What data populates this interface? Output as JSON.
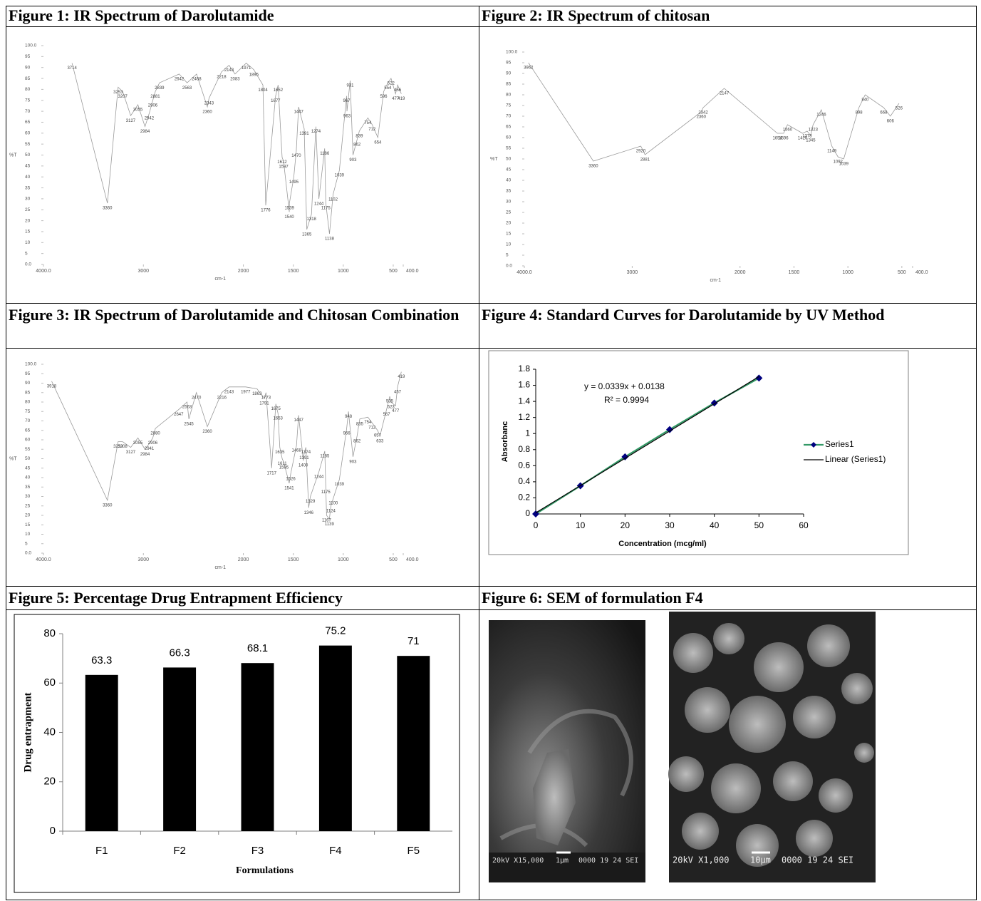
{
  "captions": [
    "Figure 1: IR Spectrum of Darolutamide",
    "Figure 2: IR Spectrum of chitosan",
    "Figure 3: IR Spectrum of Darolutamide and Chitosan Combination",
    "Figure 4: Standard Curves for Darolutamide by UV Method",
    "Figure 5: Percentage Drug Entrapment Efficiency",
    "Figure 6: SEM of formulation F4"
  ],
  "chart_data": [
    {
      "type": "line",
      "color": "#9a9a9a",
      "xlabel": "cm-1",
      "ylabel": "%T",
      "x": [
        3714,
        3360,
        3253,
        3207,
        3127,
        3055,
        2984,
        2942,
        2906,
        2881,
        2839,
        2642,
        2563,
        2468,
        2360,
        2343,
        2218,
        2143,
        2083,
        1971,
        1895,
        1804,
        1776,
        1677,
        1652,
        1612,
        1597,
        1540,
        1539,
        1495,
        1470,
        1447,
        1391,
        1365,
        1318,
        1274,
        1244,
        1186,
        1175,
        1138,
        1102,
        1039,
        967,
        963,
        931,
        903,
        862,
        839,
        754,
        712,
        654,
        596,
        554,
        522,
        477,
        456,
        419
      ],
      "values": [
        92,
        28,
        81,
        79,
        68,
        73,
        63,
        69,
        75,
        79,
        83,
        87,
        83,
        87,
        72,
        76,
        88,
        91,
        87,
        92,
        89,
        82,
        27,
        77,
        82,
        49,
        47,
        24,
        28,
        40,
        52,
        72,
        62,
        16,
        23,
        63,
        30,
        53,
        28,
        14,
        32,
        43,
        77,
        70,
        84,
        50,
        57,
        61,
        67,
        64,
        58,
        79,
        83,
        85,
        78,
        82,
        78
      ],
      "xlim": [
        4000,
        400
      ],
      "xticks": [
        {
          "value": 4000,
          "label": "4000.0"
        },
        3000,
        2000,
        1500,
        1000,
        500,
        {
          "value": 400,
          "label": "400.0"
        }
      ],
      "ylim": [
        0,
        100
      ],
      "yticks": [
        {
          "value": 0,
          "label": "0.0"
        },
        5,
        10,
        15,
        20,
        25,
        30,
        35,
        40,
        45,
        50,
        55,
        60,
        65,
        70,
        75,
        80,
        85,
        90,
        95,
        {
          "value": 100,
          "label": "100.0"
        }
      ]
    },
    {
      "type": "line",
      "color": "#9a9a9a",
      "xlabel": "cm-1",
      "ylabel": "%T",
      "x": [
        3962,
        3360,
        2920,
        2881,
        2360,
        2342,
        2147,
        1654,
        1596,
        1560,
        1420,
        1378,
        1345,
        1323,
        1246,
        1149,
        1092,
        1039,
        898,
        840,
        668,
        606,
        526
      ],
      "values": [
        95,
        49,
        56,
        52,
        72,
        74,
        83,
        62,
        62,
        66,
        62,
        63,
        61,
        66,
        73,
        56,
        51,
        50,
        74,
        80,
        74,
        70,
        76
      ],
      "xlim": [
        4000,
        400
      ],
      "xticks": [
        {
          "value": 4000,
          "label": "4000.0"
        },
        3000,
        2000,
        1500,
        1000,
        500,
        {
          "value": 400,
          "label": "400.0"
        }
      ],
      "ylim": [
        0,
        100
      ],
      "yticks": [
        {
          "value": 0,
          "label": "0.0"
        },
        5,
        10,
        15,
        20,
        25,
        30,
        35,
        40,
        45,
        50,
        55,
        60,
        65,
        70,
        75,
        80,
        85,
        90,
        95,
        {
          "value": 100,
          "label": "100.0"
        }
      ]
    },
    {
      "type": "line",
      "color": "#9a9a9a",
      "xlabel": "cm-1",
      "ylabel": "%T",
      "x": [
        3918,
        3360,
        3253,
        3208,
        3127,
        3055,
        2984,
        2941,
        2906,
        2880,
        2647,
        2563,
        2545,
        2470,
        2360,
        2216,
        2143,
        1977,
        1863,
        1791,
        1773,
        1717,
        1675,
        1653,
        1635,
        1611,
        1595,
        1541,
        1526,
        1468,
        1447,
        1400,
        1391,
        1374,
        1346,
        1329,
        1244,
        1185,
        1175,
        1167,
        1139,
        1124,
        1100,
        1039,
        966,
        948,
        903,
        862,
        835,
        754,
        712,
        657,
        633,
        567,
        535,
        523,
        477,
        457,
        419
      ],
      "values": [
        91,
        28,
        59,
        59,
        56,
        61,
        55,
        58,
        61,
        66,
        76,
        80,
        71,
        85,
        67,
        85,
        88,
        88,
        87,
        82,
        85,
        45,
        79,
        74,
        56,
        50,
        48,
        37,
        42,
        57,
        73,
        49,
        53,
        56,
        24,
        30,
        43,
        54,
        35,
        20,
        18,
        25,
        29,
        39,
        66,
        75,
        51,
        62,
        71,
        72,
        69,
        65,
        62,
        76,
        83,
        80,
        78,
        88,
        96
      ],
      "xlim": [
        4000,
        400
      ],
      "xticks": [
        {
          "value": 4000,
          "label": "4000.0"
        },
        3000,
        2000,
        1500,
        1000,
        500,
        {
          "value": 400,
          "label": "400.0"
        }
      ],
      "ylim": [
        0,
        100
      ],
      "yticks": [
        {
          "value": 0,
          "label": "0.0"
        },
        5,
        10,
        15,
        20,
        25,
        30,
        35,
        40,
        45,
        50,
        55,
        60,
        65,
        70,
        75,
        80,
        85,
        90,
        95,
        {
          "value": 100,
          "label": "100.0"
        }
      ]
    },
    {
      "type": "line",
      "xlabel": "Concentration (mcg/ml)",
      "ylabel": "Absorbanc",
      "annotations": [
        "y = 0.0339x + 0.0138",
        "R² = 0.9994"
      ],
      "x": [
        0,
        10,
        20,
        30,
        40,
        50
      ],
      "series": [
        {
          "name": "Series1",
          "color": "#339966",
          "marker_color": "#000080",
          "values": [
            0,
            0.35,
            0.71,
            1.05,
            1.38,
            1.69
          ]
        },
        {
          "name": "Linear (Series1)",
          "color": "#000000",
          "values": [
            0.0138,
            0.3528,
            0.6918,
            1.0308,
            1.3698,
            1.7088
          ]
        }
      ],
      "xlim": [
        0,
        60
      ],
      "xticks": [
        0,
        10,
        20,
        30,
        40,
        50,
        60
      ],
      "ylim": [
        0,
        1.8
      ],
      "yticks": [
        0,
        0.2,
        0.4,
        0.6,
        0.8,
        1,
        1.2,
        1.4,
        1.6,
        1.8
      ],
      "legend": "right"
    },
    {
      "type": "bar",
      "xlabel": "Formulations",
      "ylabel": "Drug entrapment",
      "color": "#000000",
      "categories": [
        "F1",
        "F2",
        "F3",
        "F4",
        "F5"
      ],
      "values": [
        63.3,
        66.3,
        68.1,
        75.2,
        71
      ],
      "ylim": [
        0,
        80
      ],
      "yticks": [
        0,
        20,
        40,
        60,
        80
      ],
      "grid": false
    }
  ],
  "sem_images": [
    {
      "settings": "20kV  X15,000",
      "scale": "1µm",
      "info": "0000 19 24 SEI"
    },
    {
      "settings": "20kV  X1,000",
      "scale": "10µm",
      "info": "0000 19 24 SEI"
    }
  ]
}
